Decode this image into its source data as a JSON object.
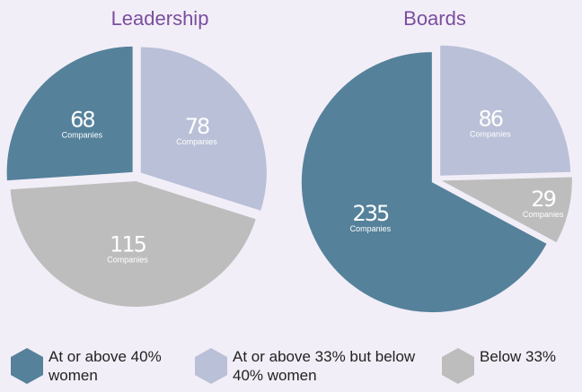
{
  "chart_data": [
    {
      "type": "pie",
      "title": "Leadership",
      "data_label_unit": "Companies",
      "categories": [
        "At or above 40% women",
        "At or above 33% but below 40% women",
        "Below 33%"
      ],
      "values": [
        68,
        78,
        115
      ],
      "colors": [
        "#55819b",
        "#b9c0d7",
        "#bdbdbd"
      ]
    },
    {
      "type": "pie",
      "title": "Boards",
      "data_label_unit": "Companies",
      "categories": [
        "At or above 40% women",
        "At or above 33% but below 40% women",
        "Below 33%"
      ],
      "values": [
        235,
        86,
        29
      ],
      "colors": [
        "#55819b",
        "#b9c0d7",
        "#bdbdbd"
      ]
    }
  ]
}
